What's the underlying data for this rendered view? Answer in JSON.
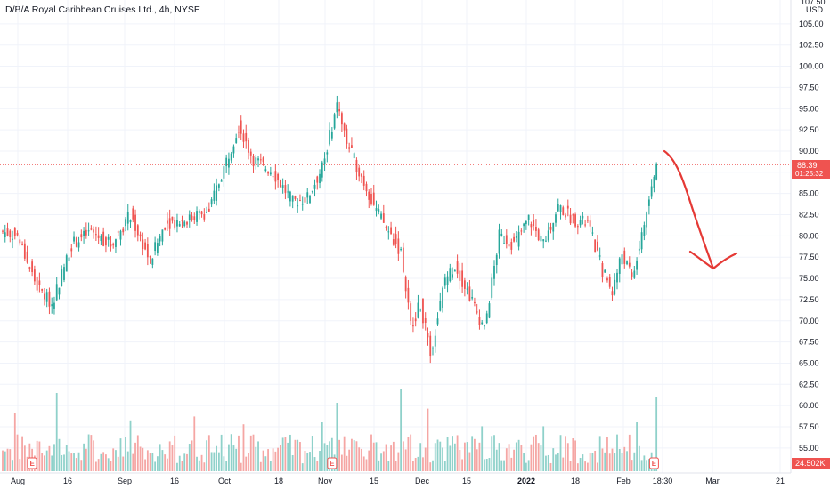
{
  "title": "D/B/A Royal Caribbean Cruises Ltd., 4h, NYSE",
  "currency": "USD",
  "price_label": "88.39",
  "countdown_label": "01:25:32",
  "volume_label": "24.502K",
  "earnings_marker_label": "E",
  "colors": {
    "up": "#26a69a",
    "down": "#ef5350",
    "vol_up": "#8fd1ca",
    "vol_down": "#f5a6a4",
    "grid": "#f0f3fa",
    "axis_text": "#131722",
    "annotation": "#e53935",
    "price_line": "#ef5350"
  },
  "chart_data": {
    "type": "candlestick",
    "title": "D/B/A Royal Caribbean Cruises Ltd., 4h, NYSE",
    "ylabel": "USD",
    "ylim": [
      52.5,
      107.5
    ],
    "y_ticks": [
      "105.00",
      "102.50",
      "100.00",
      "97.50",
      "95.00",
      "92.50",
      "90.00",
      "87.50",
      "85.00",
      "82.50",
      "80.00",
      "77.50",
      "75.00",
      "72.50",
      "70.00",
      "67.50",
      "65.00",
      "62.50",
      "60.00",
      "57.50",
      "55.00"
    ],
    "x_ticks": [
      "Aug",
      "16",
      "Sep",
      "16",
      "Oct",
      "18",
      "Nov",
      "15",
      "Dec",
      "15",
      "2022",
      "18",
      "Feb",
      "18:30",
      "Mar",
      "21"
    ],
    "last_price": 88.39,
    "last_volume": "24.502K",
    "close_anchors": [
      [
        0,
        80.5
      ],
      [
        6,
        80.0
      ],
      [
        14,
        74.0
      ],
      [
        20,
        72.0
      ],
      [
        28,
        79.0
      ],
      [
        36,
        80.5
      ],
      [
        44,
        79.0
      ],
      [
        52,
        82.5
      ],
      [
        60,
        77.0
      ],
      [
        66,
        81.5
      ],
      [
        76,
        82.0
      ],
      [
        84,
        83.0
      ],
      [
        90,
        88.0
      ],
      [
        96,
        93.0
      ],
      [
        102,
        89.0
      ],
      [
        110,
        87.5
      ],
      [
        118,
        84.0
      ],
      [
        124,
        84.5
      ],
      [
        130,
        88.0
      ],
      [
        136,
        95.5
      ],
      [
        140,
        91.0
      ],
      [
        146,
        87.0
      ],
      [
        152,
        83.0
      ],
      [
        158,
        80.0
      ],
      [
        162,
        78.0
      ],
      [
        166,
        69.5
      ],
      [
        170,
        72.0
      ],
      [
        174,
        66.0
      ],
      [
        180,
        75.0
      ],
      [
        184,
        76.5
      ],
      [
        190,
        73.0
      ],
      [
        196,
        69.0
      ],
      [
        202,
        80.0
      ],
      [
        208,
        79.0
      ],
      [
        214,
        82.0
      ],
      [
        220,
        79.0
      ],
      [
        226,
        83.5
      ],
      [
        232,
        82.0
      ],
      [
        238,
        81.5
      ],
      [
        244,
        76.0
      ],
      [
        248,
        73.5
      ],
      [
        252,
        78.0
      ],
      [
        256,
        75.0
      ],
      [
        260,
        80.0
      ],
      [
        266,
        88.3
      ]
    ],
    "volume_spikes": [
      [
        5,
        3.0
      ],
      [
        22,
        4.0
      ],
      [
        52,
        2.6
      ],
      [
        78,
        2.8
      ],
      [
        98,
        2.4
      ],
      [
        130,
        2.5
      ],
      [
        136,
        3.5
      ],
      [
        162,
        4.2
      ],
      [
        173,
        3.2
      ],
      [
        195,
        2.3
      ],
      [
        220,
        2.3
      ],
      [
        258,
        2.5
      ],
      [
        266,
        3.8
      ]
    ],
    "earnings_marker_indices": [
      12,
      134,
      265
    ],
    "annotation": "red arrow drawn downward from ~90 to ~76"
  }
}
